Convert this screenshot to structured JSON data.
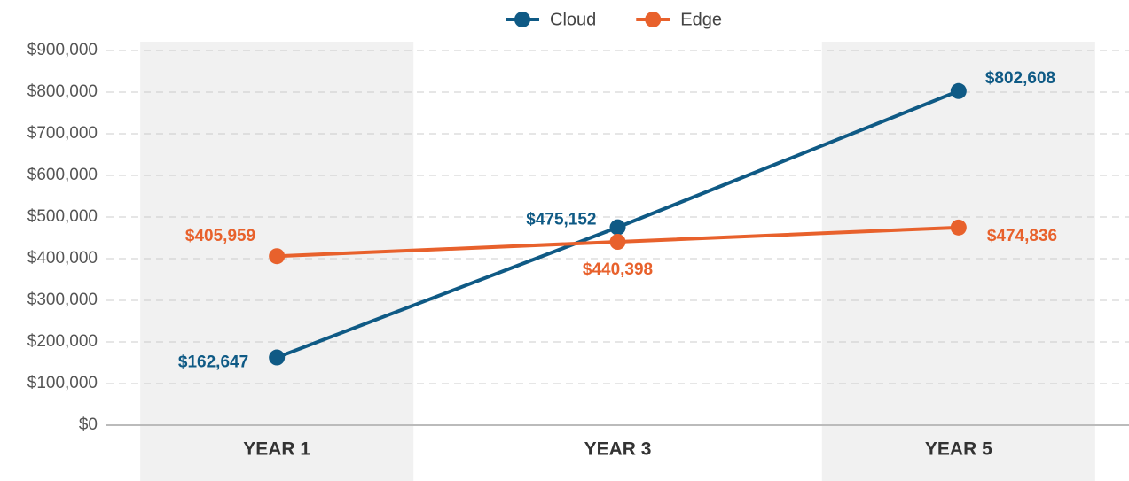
{
  "chart_data": {
    "type": "line",
    "categories": [
      "YEAR 1",
      "YEAR 3",
      "YEAR 5"
    ],
    "series": [
      {
        "name": "Cloud",
        "color": "#0f5a85",
        "values": [
          162647,
          475152,
          802608
        ],
        "value_labels": [
          "$162,647",
          "$475,152",
          "$802,608"
        ]
      },
      {
        "name": "Edge",
        "color": "#e8612c",
        "values": [
          405959,
          440398,
          474836
        ],
        "value_labels": [
          "$405,959",
          "$440,398",
          "$474,836"
        ]
      }
    ],
    "ylim": [
      0,
      900000
    ],
    "yticks": [
      {
        "value": 0,
        "label": "$0"
      },
      {
        "value": 100000,
        "label": "$100,000"
      },
      {
        "value": 200000,
        "label": "$200,000"
      },
      {
        "value": 300000,
        "label": "$300,000"
      },
      {
        "value": 400000,
        "label": "$400,000"
      },
      {
        "value": 500000,
        "label": "$500,000"
      },
      {
        "value": 600000,
        "label": "$600,000"
      },
      {
        "value": 700000,
        "label": "$700,000"
      },
      {
        "value": 800000,
        "label": "$800,000"
      },
      {
        "value": 900000,
        "label": "$900,000"
      }
    ],
    "grid": true,
    "legend": "top"
  }
}
